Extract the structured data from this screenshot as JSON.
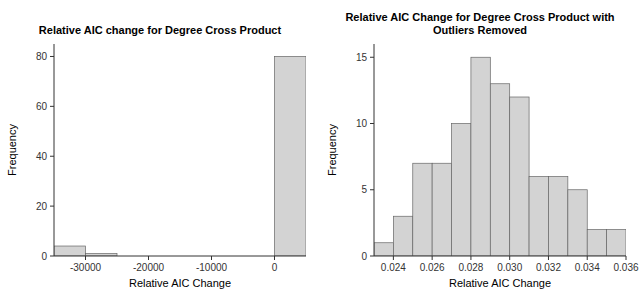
{
  "chart_data": [
    {
      "type": "histogram",
      "title": "Relative AIC change for Degree Cross Product",
      "xlabel": "Relative AIC Change",
      "ylabel": "Frequency",
      "bins": [
        -35000,
        -30000,
        -25000,
        -20000,
        -15000,
        -10000,
        -5000,
        0,
        5000
      ],
      "values": [
        4,
        1,
        0,
        0,
        0,
        0,
        0,
        80
      ],
      "color": "#d3d3d3",
      "xlim": [
        -35000,
        5000
      ],
      "ylim": [
        0,
        85
      ],
      "xticks": [
        -30000,
        -20000,
        -10000,
        0
      ],
      "yticks": [
        0,
        20,
        40,
        60,
        80
      ]
    },
    {
      "type": "histogram",
      "title": "Relative AIC Change for Degree Cross Product with Outliers Removed",
      "xlabel": "Relative AIC Change",
      "ylabel": "Frequency",
      "bins": [
        0.023,
        0.024,
        0.025,
        0.026,
        0.027,
        0.028,
        0.029,
        0.03,
        0.031,
        0.032,
        0.033,
        0.034,
        0.035,
        0.036
      ],
      "values": [
        1,
        3,
        7,
        7,
        10,
        15,
        13,
        12,
        6,
        6,
        5,
        2,
        2
      ],
      "color": "#d3d3d3",
      "xlim": [
        0.023,
        0.036
      ],
      "ylim": [
        0,
        16
      ],
      "xticks": [
        0.024,
        0.026,
        0.028,
        {
          "value": 0.03,
          "label": "0.030"
        },
        0.032,
        0.034,
        0.036
      ],
      "yticks": [
        0,
        5,
        10,
        15
      ]
    }
  ]
}
